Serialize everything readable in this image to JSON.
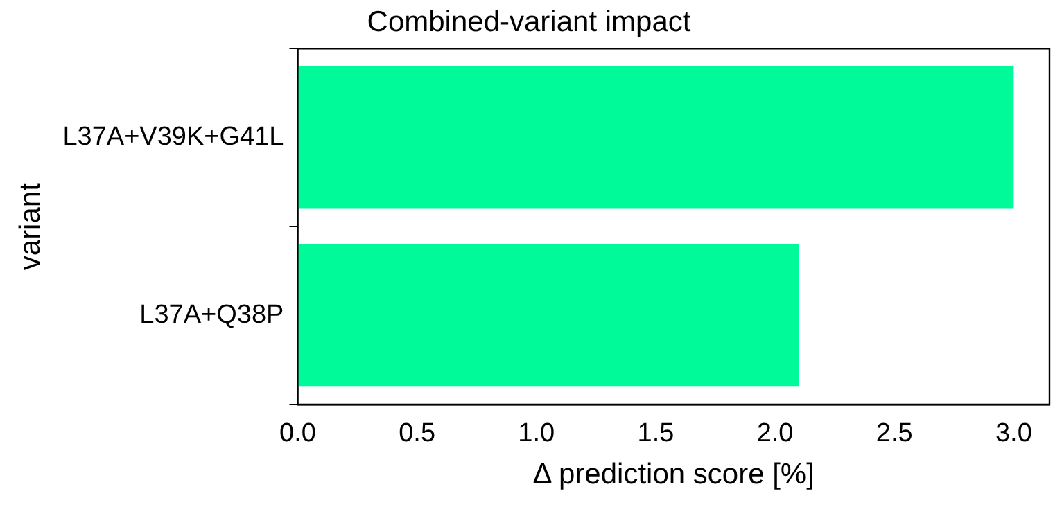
{
  "chart_data": {
    "type": "bar",
    "orientation": "horizontal",
    "title": "Combined-variant impact",
    "xlabel": "Δ prediction score [%]",
    "ylabel": "variant",
    "categories": [
      "L37A+V39K+G41L",
      "L37A+Q38P"
    ],
    "values": [
      3.0,
      2.1
    ],
    "color": "#00fa9a",
    "xlim": [
      0,
      3.15
    ],
    "xticks": [
      {
        "value": 0,
        "label": "0.0"
      },
      {
        "value": 0.5,
        "label": "0.5"
      },
      {
        "value": 1,
        "label": "1.0"
      },
      {
        "value": 1.5,
        "label": "1.5"
      },
      {
        "value": 2,
        "label": "2.0"
      },
      {
        "value": 2.5,
        "label": "2.5"
      },
      {
        "value": 3,
        "label": "3.0"
      }
    ],
    "grid": false,
    "legend": false
  }
}
